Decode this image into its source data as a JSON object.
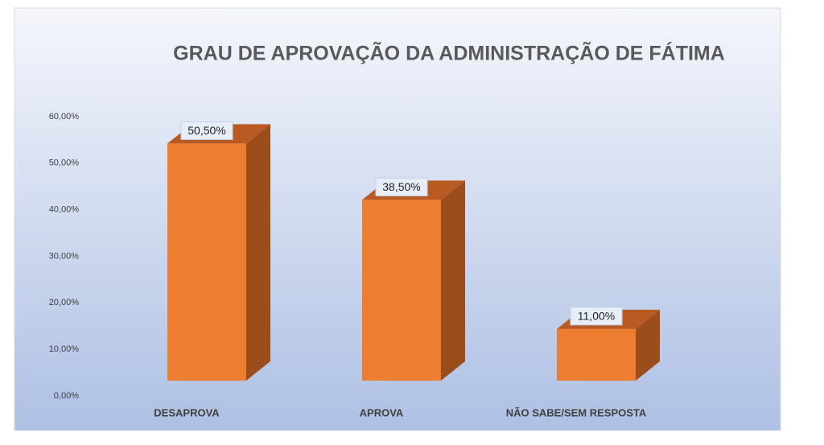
{
  "chart_data": {
    "type": "bar3d",
    "title": "GRAU DE APROVAÇÃO DA ADMINISTRAÇÃO DE FÁTIMA",
    "categories": [
      "DESAPROVA",
      "APROVA",
      "NÃO SABE/SEM RESPOSTA"
    ],
    "values": [
      50.5,
      38.5,
      11
    ],
    "value_labels": [
      "50,50%",
      "38,50%",
      "11,00%"
    ],
    "color": "#ed7d31",
    "ylim": [
      0,
      60
    ],
    "yticks": [
      {
        "value": 0,
        "label": "0,00%"
      },
      {
        "value": 10,
        "label": "10,00%"
      },
      {
        "value": 20,
        "label": "20,00%"
      },
      {
        "value": 30,
        "label": "30,00%"
      },
      {
        "value": 40,
        "label": "40,00%"
      },
      {
        "value": 50,
        "label": "50,00%"
      },
      {
        "value": 60,
        "label": "60,00%"
      }
    ],
    "grid": false
  }
}
